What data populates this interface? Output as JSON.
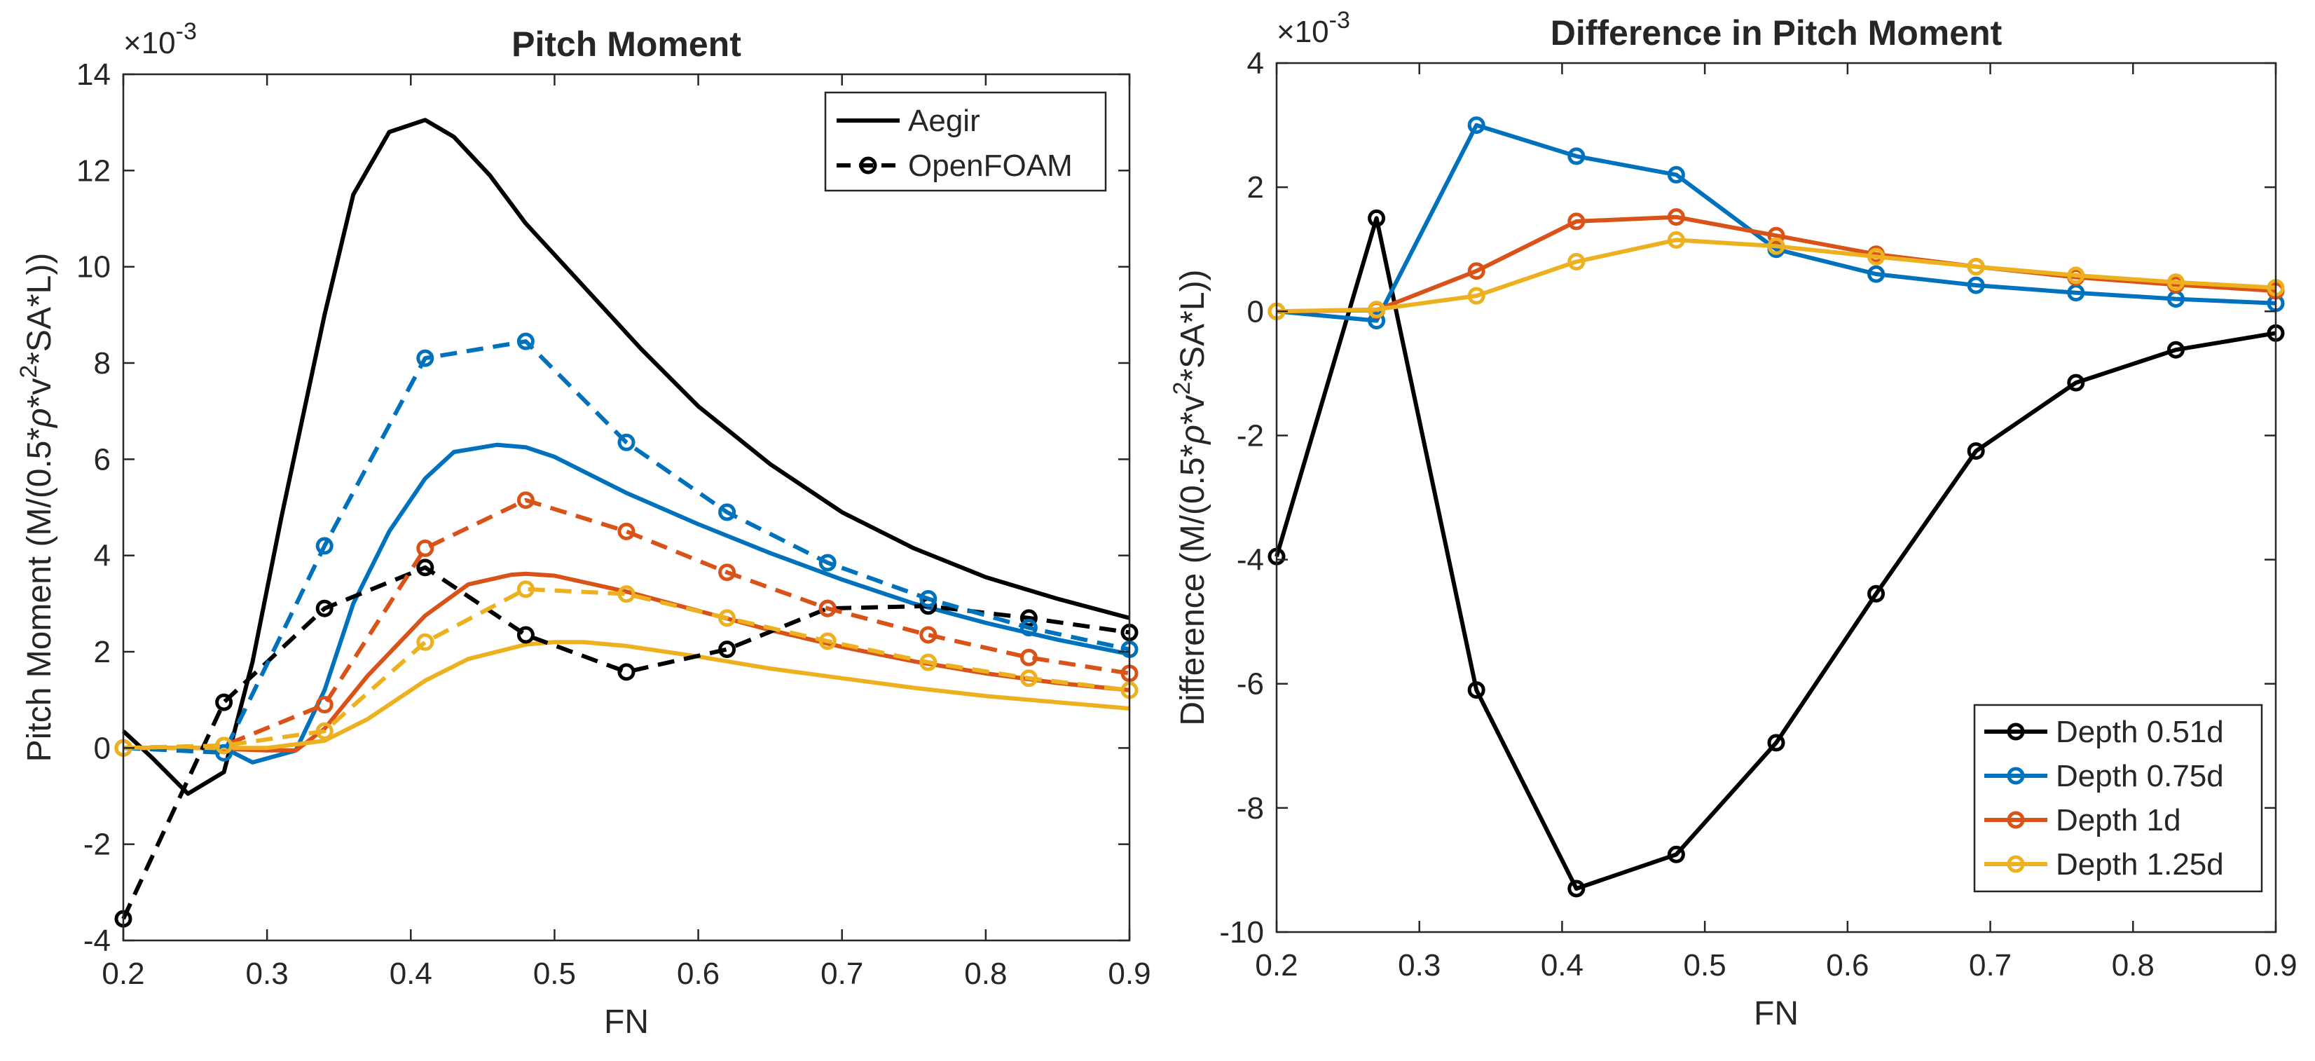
{
  "chart_data": [
    {
      "type": "line",
      "title": "Pitch Moment",
      "xlabel": "FN",
      "ylabel_parts": [
        "Pitch Moment (M/(0.5*",
        "ρ",
        "*v",
        "2",
        "*SA*L))"
      ],
      "exponent_label": [
        "×10",
        "-3"
      ],
      "xlim": [
        0.2,
        0.9
      ],
      "ylim": [
        -4,
        14
      ],
      "xticks": [
        0.2,
        0.3,
        0.4,
        0.5,
        0.6,
        0.7,
        0.8,
        0.9
      ],
      "yticks": [
        -4,
        -2,
        0,
        2,
        4,
        6,
        8,
        10,
        12,
        14
      ],
      "xtick_labels": [
        "0.2",
        "0.3",
        "0.4",
        "0.5",
        "0.6",
        "0.7",
        "0.8",
        "0.9"
      ],
      "ytick_labels": [
        "-4",
        "-2",
        "0",
        "2",
        "4",
        "6",
        "8",
        "10",
        "12",
        "14"
      ],
      "legend": {
        "position": "top-right",
        "entries": [
          {
            "label": "Aegir",
            "style": "solid"
          },
          {
            "label": "OpenFOAM",
            "style": "dashed-circle"
          }
        ]
      },
      "series": [
        {
          "name": "Aegir 0.51d",
          "color": "#000000",
          "style": "solid",
          "x": [
            0.2,
            0.22,
            0.245,
            0.27,
            0.29,
            0.31,
            0.34,
            0.36,
            0.385,
            0.41,
            0.43,
            0.455,
            0.48,
            0.52,
            0.56,
            0.6,
            0.65,
            0.7,
            0.75,
            0.8,
            0.85,
            0.9
          ],
          "y": [
            0.35,
            -0.2,
            -0.95,
            -0.5,
            1.8,
            4.8,
            9.0,
            11.5,
            12.8,
            13.05,
            12.7,
            11.9,
            10.9,
            9.6,
            8.3,
            7.1,
            5.9,
            4.9,
            4.15,
            3.55,
            3.1,
            2.7
          ]
        },
        {
          "name": "Aegir 0.75d",
          "color": "#0072BD",
          "style": "solid",
          "x": [
            0.2,
            0.25,
            0.27,
            0.29,
            0.32,
            0.34,
            0.36,
            0.385,
            0.41,
            0.43,
            0.46,
            0.48,
            0.5,
            0.55,
            0.6,
            0.65,
            0.7,
            0.75,
            0.8,
            0.85,
            0.9
          ],
          "y": [
            0.0,
            0.0,
            0.0,
            -0.3,
            -0.05,
            1.2,
            3.0,
            4.5,
            5.6,
            6.15,
            6.3,
            6.25,
            6.05,
            5.3,
            4.65,
            4.05,
            3.5,
            3.0,
            2.6,
            2.25,
            1.95
          ]
        },
        {
          "name": "Aegir 1d",
          "color": "#D95319",
          "style": "solid",
          "x": [
            0.2,
            0.25,
            0.3,
            0.32,
            0.34,
            0.37,
            0.41,
            0.44,
            0.47,
            0.48,
            0.5,
            0.55,
            0.6,
            0.65,
            0.7,
            0.75,
            0.8,
            0.85,
            0.9
          ],
          "y": [
            0.0,
            0.0,
            -0.05,
            -0.05,
            0.4,
            1.5,
            2.75,
            3.4,
            3.6,
            3.62,
            3.58,
            3.25,
            2.85,
            2.45,
            2.1,
            1.8,
            1.55,
            1.35,
            1.2
          ]
        },
        {
          "name": "Aegir 1.25d",
          "color": "#EDB120",
          "style": "solid",
          "x": [
            0.2,
            0.3,
            0.34,
            0.37,
            0.41,
            0.44,
            0.48,
            0.5,
            0.52,
            0.55,
            0.6,
            0.65,
            0.7,
            0.75,
            0.8,
            0.85,
            0.9
          ],
          "y": [
            0.0,
            0.0,
            0.15,
            0.6,
            1.4,
            1.85,
            2.15,
            2.2,
            2.2,
            2.12,
            1.9,
            1.65,
            1.45,
            1.25,
            1.08,
            0.95,
            0.82
          ]
        },
        {
          "name": "OpenFOAM 0.51d",
          "color": "#000000",
          "style": "dashed-circle",
          "x": [
            0.2,
            0.27,
            0.34,
            0.41,
            0.48,
            0.55,
            0.62,
            0.69,
            0.76,
            0.83,
            0.9
          ],
          "y": [
            -3.55,
            0.95,
            2.9,
            3.75,
            2.35,
            1.58,
            2.05,
            2.9,
            2.95,
            2.7,
            2.4
          ]
        },
        {
          "name": "OpenFOAM 0.75d",
          "color": "#0072BD",
          "style": "dashed-circle",
          "x": [
            0.2,
            0.27,
            0.34,
            0.41,
            0.48,
            0.55,
            0.62,
            0.69,
            0.76,
            0.83,
            0.9
          ],
          "y": [
            0.0,
            -0.1,
            4.2,
            8.1,
            8.45,
            6.35,
            4.9,
            3.85,
            3.1,
            2.5,
            2.05
          ]
        },
        {
          "name": "OpenFOAM 1d",
          "color": "#D95319",
          "style": "dashed-circle",
          "x": [
            0.2,
            0.27,
            0.34,
            0.41,
            0.48,
            0.55,
            0.62,
            0.69,
            0.76,
            0.83,
            0.9
          ],
          "y": [
            0.0,
            0.05,
            0.9,
            4.15,
            5.15,
            4.5,
            3.65,
            2.9,
            2.35,
            1.88,
            1.55
          ]
        },
        {
          "name": "OpenFOAM 1.25d",
          "color": "#EDB120",
          "style": "dashed-circle",
          "x": [
            0.2,
            0.27,
            0.34,
            0.41,
            0.48,
            0.55,
            0.62,
            0.69,
            0.76,
            0.83,
            0.9
          ],
          "y": [
            0.0,
            0.05,
            0.35,
            2.2,
            3.3,
            3.2,
            2.7,
            2.22,
            1.78,
            1.45,
            1.2
          ]
        }
      ]
    },
    {
      "type": "line",
      "title": "Difference in Pitch Moment",
      "xlabel": "FN",
      "ylabel_parts": [
        "Difference (M/(0.5*",
        "ρ",
        "*v",
        "2",
        "*SA*L))"
      ],
      "exponent_label": [
        "×10",
        "-3"
      ],
      "xlim": [
        0.2,
        0.9
      ],
      "ylim": [
        -10,
        4
      ],
      "xticks": [
        0.2,
        0.3,
        0.4,
        0.5,
        0.6,
        0.7,
        0.8,
        0.9
      ],
      "yticks": [
        -10,
        -8,
        -6,
        -4,
        -2,
        0,
        2,
        4
      ],
      "xtick_labels": [
        "0.2",
        "0.3",
        "0.4",
        "0.5",
        "0.6",
        "0.7",
        "0.8",
        "0.9"
      ],
      "ytick_labels": [
        "-10",
        "-8",
        "-6",
        "-4",
        "-2",
        "0",
        "2",
        "4"
      ],
      "legend": {
        "position": "bottom-right",
        "entries": [
          {
            "label": "Depth 0.51d",
            "color": "#000000"
          },
          {
            "label": "Depth 0.75d",
            "color": "#0072BD"
          },
          {
            "label": "Depth 1d",
            "color": "#D95319"
          },
          {
            "label": "Depth 1.25d",
            "color": "#EDB120"
          }
        ]
      },
      "series": [
        {
          "name": "Depth 0.51d",
          "color": "#000000",
          "style": "solid-circle",
          "x": [
            0.2,
            0.27,
            0.34,
            0.41,
            0.48,
            0.55,
            0.62,
            0.69,
            0.76,
            0.83,
            0.9
          ],
          "y": [
            -3.95,
            1.5,
            -6.1,
            -9.3,
            -8.75,
            -6.95,
            -4.55,
            -2.25,
            -1.15,
            -0.62,
            -0.35
          ]
        },
        {
          "name": "Depth 0.75d",
          "color": "#0072BD",
          "style": "solid-circle",
          "x": [
            0.2,
            0.27,
            0.34,
            0.41,
            0.48,
            0.55,
            0.62,
            0.69,
            0.76,
            0.83,
            0.9
          ],
          "y": [
            0.0,
            -0.15,
            3.0,
            2.5,
            2.2,
            1.0,
            0.6,
            0.42,
            0.3,
            0.2,
            0.13
          ]
        },
        {
          "name": "Depth 1d",
          "color": "#D95319",
          "style": "solid-circle",
          "x": [
            0.2,
            0.27,
            0.34,
            0.41,
            0.48,
            0.55,
            0.62,
            0.69,
            0.76,
            0.83,
            0.9
          ],
          "y": [
            0.0,
            0.02,
            0.65,
            1.45,
            1.52,
            1.22,
            0.92,
            0.72,
            0.55,
            0.43,
            0.33
          ]
        },
        {
          "name": "Depth 1.25d",
          "color": "#EDB120",
          "style": "solid-circle",
          "x": [
            0.2,
            0.27,
            0.34,
            0.41,
            0.48,
            0.55,
            0.62,
            0.69,
            0.76,
            0.83,
            0.9
          ],
          "y": [
            0.0,
            0.03,
            0.25,
            0.8,
            1.15,
            1.05,
            0.88,
            0.72,
            0.58,
            0.47,
            0.38
          ]
        }
      ]
    }
  ]
}
